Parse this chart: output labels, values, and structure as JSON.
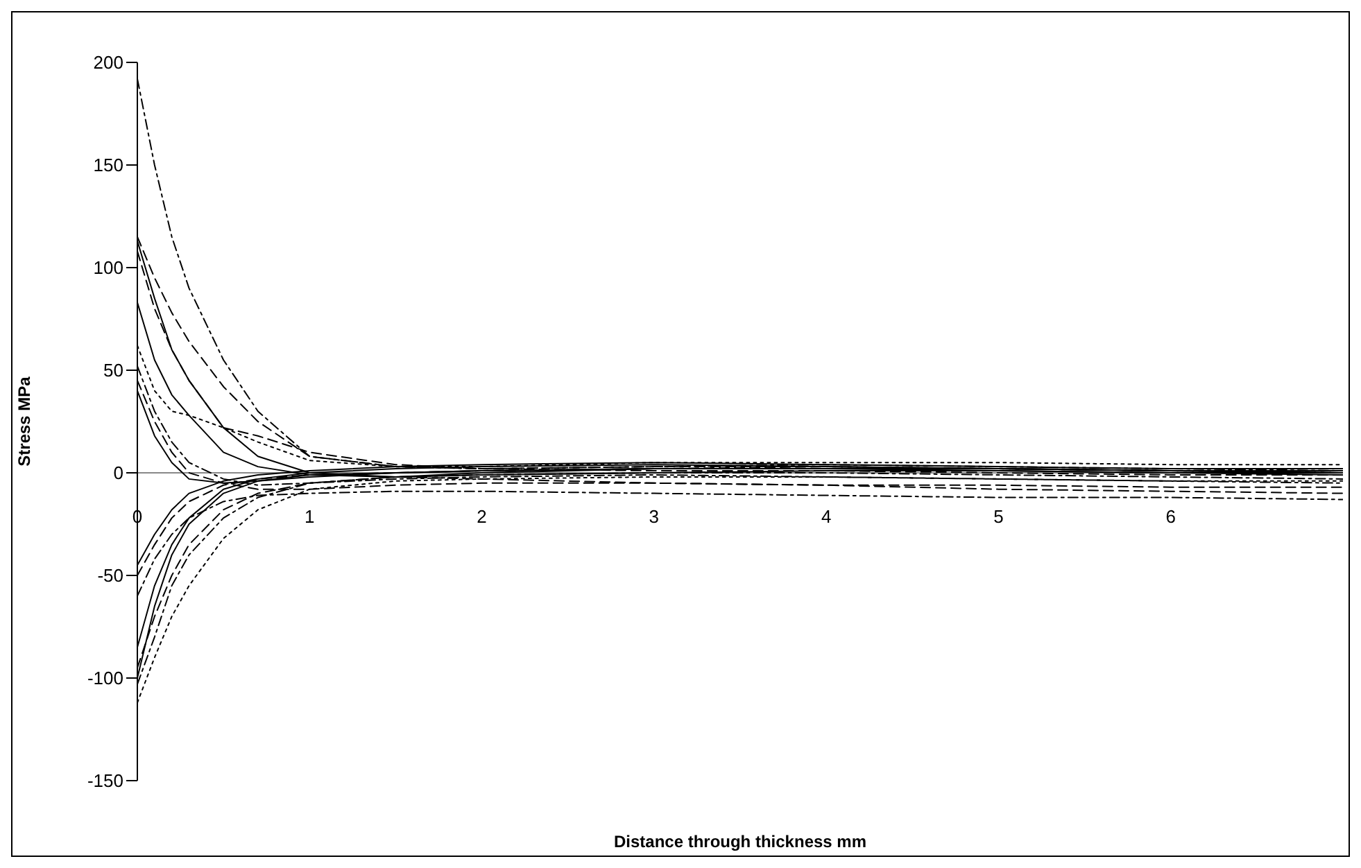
{
  "chart_data": {
    "type": "line",
    "xlabel": "Distance through thickness   mm",
    "ylabel": "Stress   MPa",
    "x": [
      0,
      0.1,
      0.2,
      0.3,
      0.5,
      0.7,
      1,
      1.5,
      2,
      3,
      4,
      5,
      6,
      7
    ],
    "xlim": [
      0,
      7
    ],
    "xticks": [
      0,
      1,
      2,
      3,
      4,
      5,
      6
    ],
    "ylim": [
      -150,
      200
    ],
    "yticks": [
      -150,
      -100,
      -50,
      0,
      50,
      100,
      150,
      200
    ],
    "marker": "none",
    "series": [
      {
        "color": "#000000",
        "line_style": "dashdot",
        "values": [
          192,
          150,
          115,
          90,
          55,
          30,
          8,
          3,
          2,
          3,
          4,
          3,
          2,
          1
        ]
      },
      {
        "color": "#000000",
        "line_style": "dashed",
        "values": [
          115,
          95,
          78,
          64,
          42,
          25,
          8,
          3,
          2,
          3,
          3,
          2,
          1,
          0
        ]
      },
      {
        "color": "#000000",
        "line_style": "solid",
        "values": [
          113,
          85,
          60,
          45,
          22,
          8,
          0,
          -2,
          0,
          2,
          2,
          1,
          0,
          -1
        ]
      },
      {
        "color": "#000000",
        "line_style": "dashed",
        "values": [
          108,
          80,
          60,
          45,
          22,
          18,
          10,
          4,
          2,
          1,
          1,
          0,
          -1,
          -1
        ]
      },
      {
        "color": "#000000",
        "line_style": "solid",
        "values": [
          83,
          55,
          38,
          28,
          10,
          3,
          -1,
          -2,
          -1,
          0,
          1,
          1,
          0,
          0
        ]
      },
      {
        "color": "#000000",
        "line_style": "dotted",
        "values": [
          62,
          40,
          30,
          28,
          22,
          15,
          6,
          3,
          3,
          5,
          5,
          5,
          4,
          4
        ]
      },
      {
        "color": "#000000",
        "line_style": "dashdot",
        "values": [
          52,
          30,
          15,
          5,
          -3,
          -6,
          -5,
          -3,
          -2,
          -1,
          -2,
          -3,
          -4,
          -5
        ]
      },
      {
        "color": "#000000",
        "line_style": "dashed",
        "values": [
          45,
          25,
          10,
          0,
          -5,
          -8,
          -8,
          -6,
          -5,
          -5,
          -6,
          -6,
          -7,
          -7
        ]
      },
      {
        "color": "#000000",
        "line_style": "solid",
        "values": [
          40,
          18,
          5,
          -3,
          -5,
          -4,
          -2,
          0,
          1,
          2,
          2,
          2,
          1,
          1
        ]
      },
      {
        "color": "#000000",
        "line_style": "solid",
        "values": [
          -45,
          -30,
          -18,
          -10,
          -4,
          -1,
          1,
          3,
          4,
          5,
          4,
          3,
          2,
          2
        ]
      },
      {
        "color": "#000000",
        "line_style": "dashed",
        "values": [
          -50,
          -35,
          -22,
          -14,
          -6,
          -3,
          -1,
          0,
          1,
          2,
          3,
          2,
          1,
          0
        ]
      },
      {
        "color": "#000000",
        "line_style": "solid",
        "values": [
          -85,
          -55,
          -35,
          -22,
          -8,
          -3,
          0,
          2,
          3,
          4,
          3,
          2,
          1,
          0
        ]
      },
      {
        "color": "#000000",
        "line_style": "solid",
        "values": [
          -100,
          -65,
          -40,
          -25,
          -10,
          -4,
          -1,
          0,
          1,
          2,
          2,
          2,
          1,
          1
        ]
      },
      {
        "color": "#000000",
        "line_style": "dashdot",
        "values": [
          -103,
          -80,
          -55,
          -40,
          -22,
          -12,
          -5,
          -2,
          -1,
          0,
          0,
          -1,
          -2,
          -3
        ]
      },
      {
        "color": "#000000",
        "line_style": "dotted",
        "values": [
          -112,
          -90,
          -70,
          -55,
          -32,
          -18,
          -8,
          -4,
          -3,
          -2,
          -2,
          -3,
          -4,
          -4
        ]
      },
      {
        "color": "#000000",
        "line_style": "dashed",
        "values": [
          -95,
          -70,
          -50,
          -35,
          -18,
          -10,
          -5,
          -2,
          -3,
          -5,
          -6,
          -8,
          -9,
          -10
        ]
      },
      {
        "color": "#000000",
        "line_style": "dashdot",
        "values": [
          -60,
          -42,
          -30,
          -22,
          -14,
          -11,
          -10,
          -9,
          -9,
          -10,
          -11,
          -12,
          -12,
          -13
        ]
      }
    ]
  }
}
